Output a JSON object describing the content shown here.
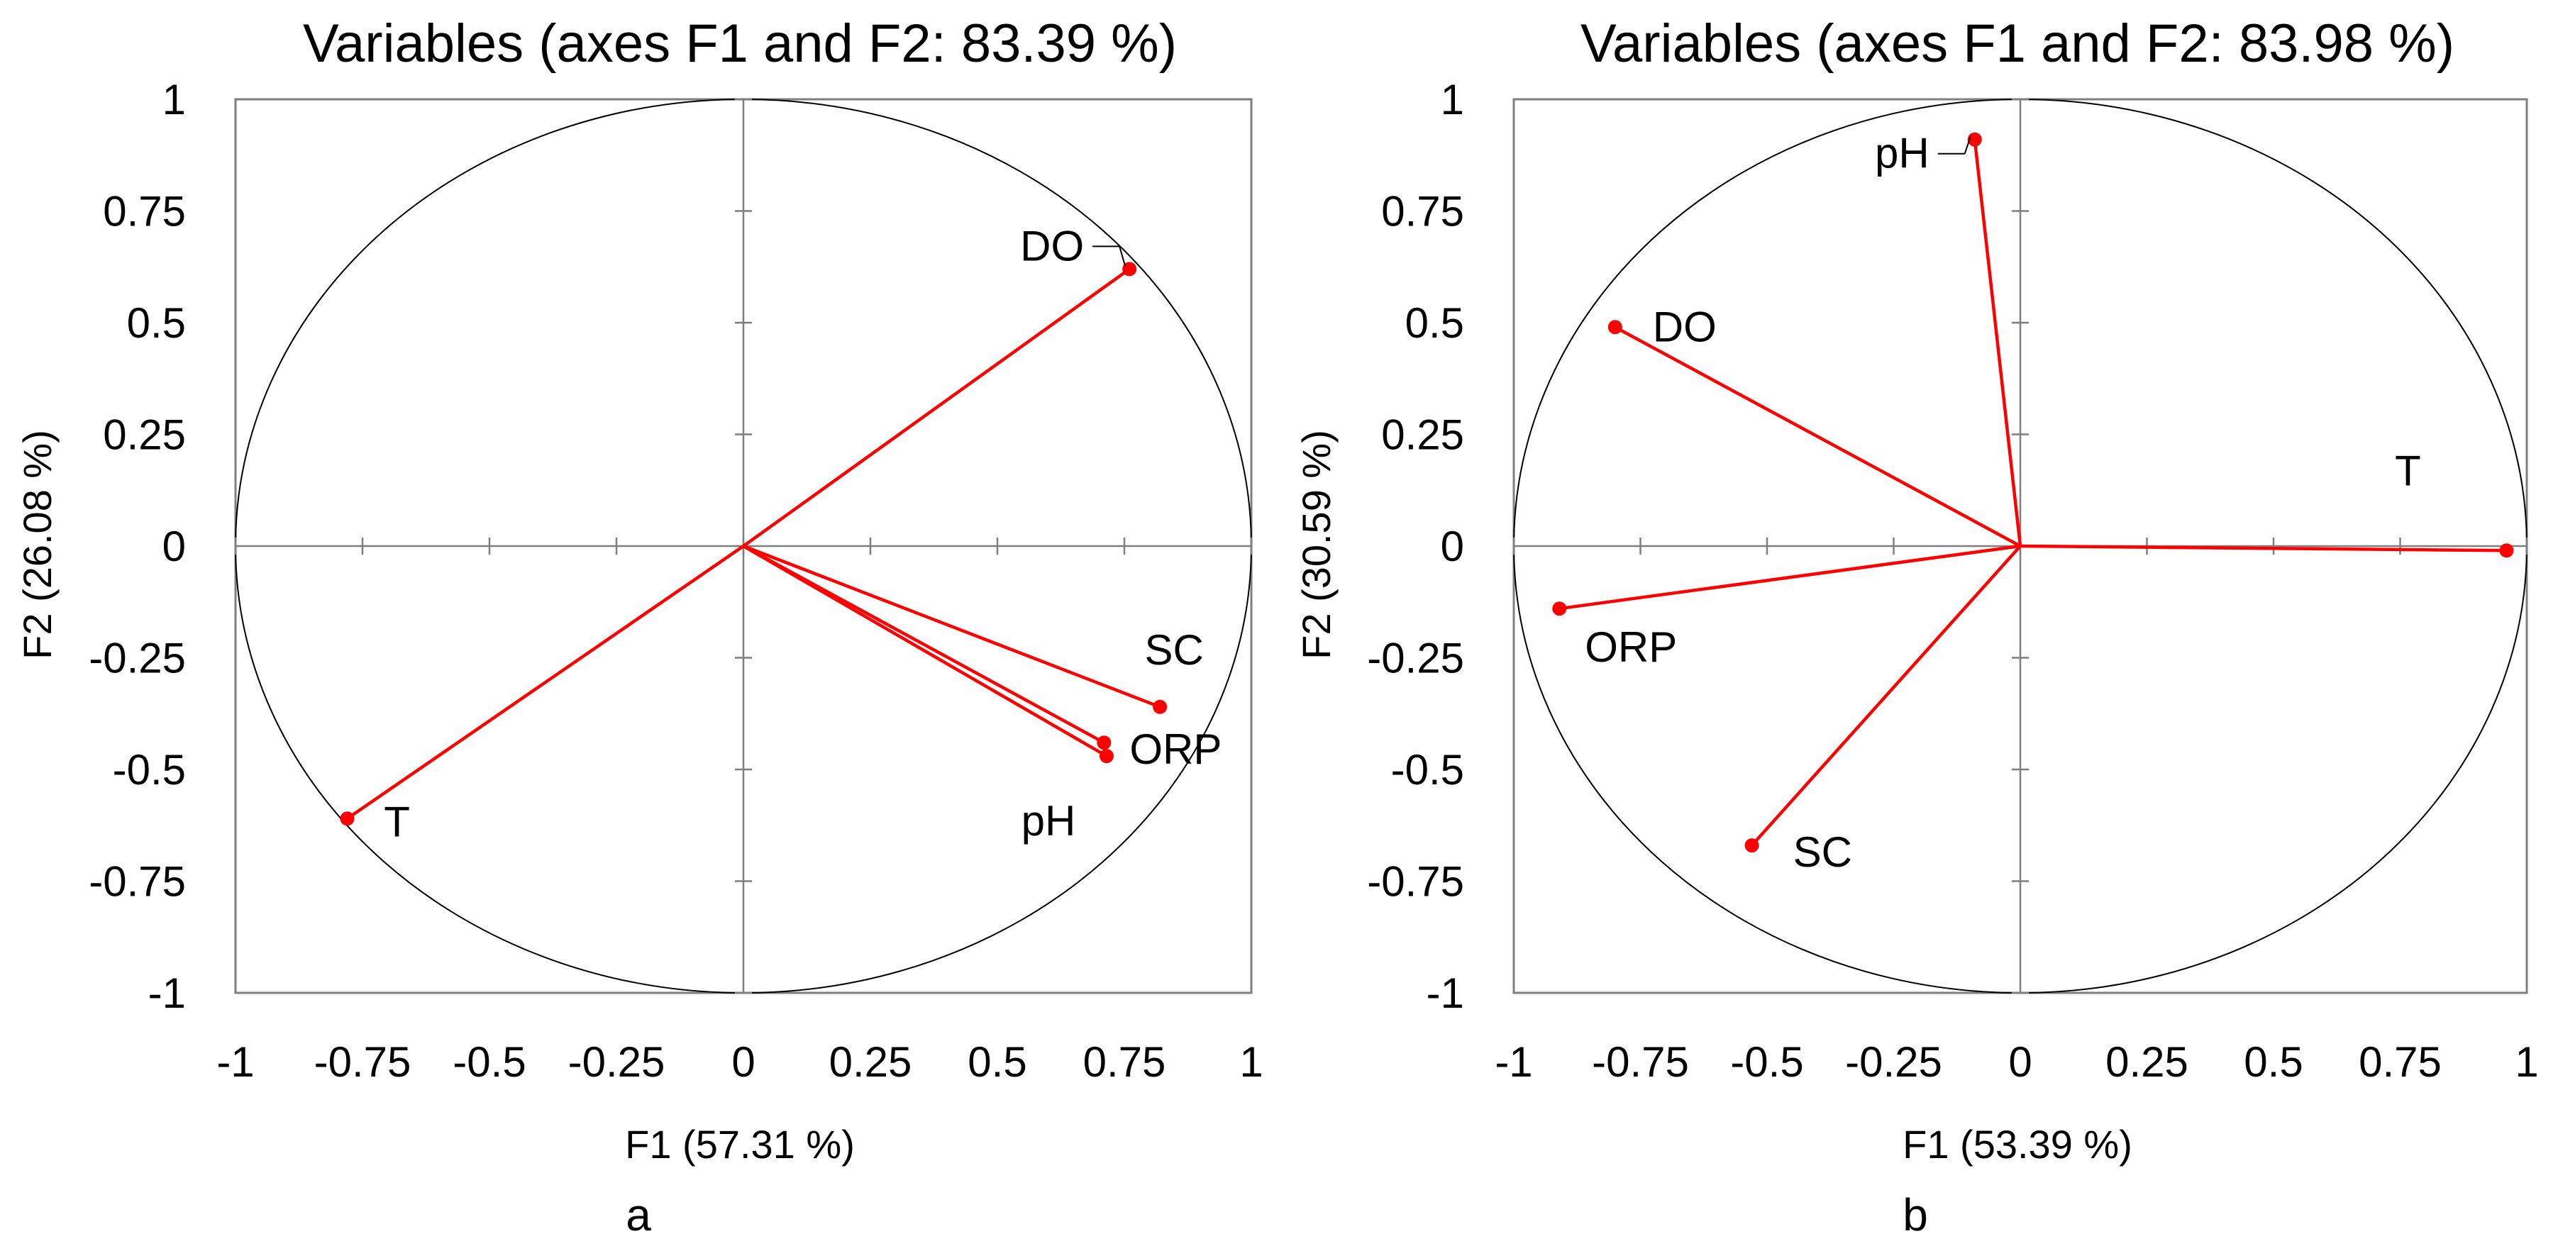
{
  "colors": {
    "vector": "#ff0000",
    "axes": "#7f7f7f",
    "circle": "#000000",
    "text": "#000000"
  },
  "chart_data": [
    {
      "type": "scatter",
      "subtype": "pca-correlation-circle",
      "panel": "a",
      "title": "Variables (axes F1 and F2: 83.39 %)",
      "xlabel": "F1 (57.31 %)",
      "ylabel": "F2 (26.08 %)",
      "xlim": [
        -1,
        1
      ],
      "ylim": [
        -1,
        1
      ],
      "xticks": [
        "-1",
        "-0.75",
        "-0.5",
        "-0.25",
        "0",
        "0.25",
        "0.5",
        "0.75",
        "1"
      ],
      "yticks": [
        "1",
        "0.75",
        "0.5",
        "0.25",
        "0",
        "-0.25",
        "-0.5",
        "-0.75",
        "-1"
      ],
      "variables": [
        {
          "name": "DO",
          "x": 0.76,
          "y": 0.62
        },
        {
          "name": "SC",
          "x": 0.82,
          "y": -0.36
        },
        {
          "name": "ORP",
          "x": 0.71,
          "y": -0.44
        },
        {
          "name": "pH",
          "x": 0.715,
          "y": -0.47
        },
        {
          "name": "T",
          "x": -0.78,
          "y": -0.61
        }
      ]
    },
    {
      "type": "scatter",
      "subtype": "pca-correlation-circle",
      "panel": "b",
      "title": "Variables (axes F1 and F2: 83.98 %)",
      "xlabel": "F1 (53.39 %)",
      "ylabel": "F2 (30.59 %)",
      "xlim": [
        -1,
        1
      ],
      "ylim": [
        -1,
        1
      ],
      "xticks": [
        "-1",
        "-0.75",
        "-0.5",
        "-0.25",
        "0",
        "0.25",
        "0.5",
        "0.75",
        "1"
      ],
      "yticks": [
        "1",
        "0.75",
        "0.5",
        "0.25",
        "0",
        "-0.25",
        "-0.5",
        "-0.75",
        "-1"
      ],
      "variables": [
        {
          "name": "pH",
          "x": -0.09,
          "y": 0.91
        },
        {
          "name": "DO",
          "x": -0.8,
          "y": 0.49
        },
        {
          "name": "T",
          "x": 0.96,
          "y": -0.01
        },
        {
          "name": "ORP",
          "x": -0.91,
          "y": -0.14
        },
        {
          "name": "SC",
          "x": -0.53,
          "y": -0.67
        }
      ]
    }
  ]
}
